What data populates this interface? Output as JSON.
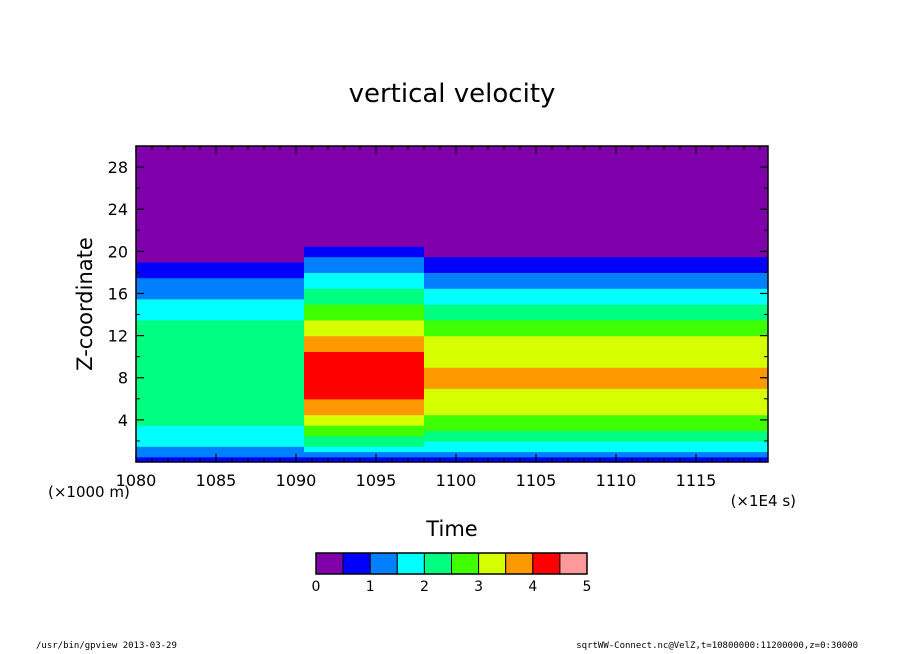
{
  "chart_data": {
    "type": "heatmap",
    "title": "vertical velocity",
    "xlabel": "Time",
    "ylabel": "Z-coordinate",
    "x_unit_note": "(×1E4 s)",
    "y_unit_note": "(×1000 m)",
    "xlim": [
      1080,
      1119.5
    ],
    "ylim": [
      0,
      30
    ],
    "x_ticks": [
      1080,
      1085,
      1090,
      1095,
      1100,
      1105,
      1110,
      1115
    ],
    "y_ticks": [
      4,
      8,
      12,
      16,
      20,
      24,
      28
    ],
    "colorbar": {
      "levels": [
        0,
        0.5,
        1,
        1.5,
        2,
        2.5,
        3,
        3.5,
        4,
        4.5,
        5
      ],
      "labels": [
        "0",
        "1",
        "2",
        "3",
        "4",
        "5"
      ],
      "colors": [
        "#7f00aa",
        "#0000ff",
        "#007fff",
        "#00ffff",
        "#00ff80",
        "#40ff00",
        "#d5ff00",
        "#ff9900",
        "#ff0000",
        "#ff9999"
      ]
    },
    "profiles": [
      {
        "time_range": [
          1080,
          1090.5
        ],
        "value_by_height": [
          [
            0,
            0.4
          ],
          [
            1,
            1.4
          ],
          [
            3,
            1.9
          ],
          [
            6,
            2.3
          ],
          [
            8,
            2.5
          ],
          [
            11,
            2.4
          ],
          [
            14,
            1.9
          ],
          [
            17,
            1.2
          ],
          [
            19,
            0.5
          ],
          [
            20,
            0.2
          ]
        ]
      },
      {
        "time_range": [
          1090.5,
          1098
        ],
        "value_by_height": [
          [
            0,
            0.4
          ],
          [
            1,
            1.6
          ],
          [
            3,
            2.8
          ],
          [
            6,
            4.0
          ],
          [
            8,
            4.3
          ],
          [
            11,
            3.9
          ],
          [
            14,
            2.8
          ],
          [
            17,
            1.8
          ],
          [
            20,
            0.8
          ],
          [
            21,
            0.2
          ]
        ]
      },
      {
        "time_range": [
          1098,
          1119.5
        ],
        "value_by_height": [
          [
            0,
            0.4
          ],
          [
            1,
            1.5
          ],
          [
            3,
            2.6
          ],
          [
            6,
            3.4
          ],
          [
            8,
            3.6
          ],
          [
            11,
            3.2
          ],
          [
            14,
            2.4
          ],
          [
            17,
            1.3
          ],
          [
            19.5,
            0.5
          ],
          [
            20,
            0.2
          ]
        ]
      }
    ],
    "grid": false,
    "legend": "colorbar bottom-center"
  },
  "footer": {
    "left": "/usr/bin/gpview  2013-03-29",
    "right": "sqrtWW-Connect.nc@VelZ,t=10800000:11200000,z=0:30000"
  }
}
